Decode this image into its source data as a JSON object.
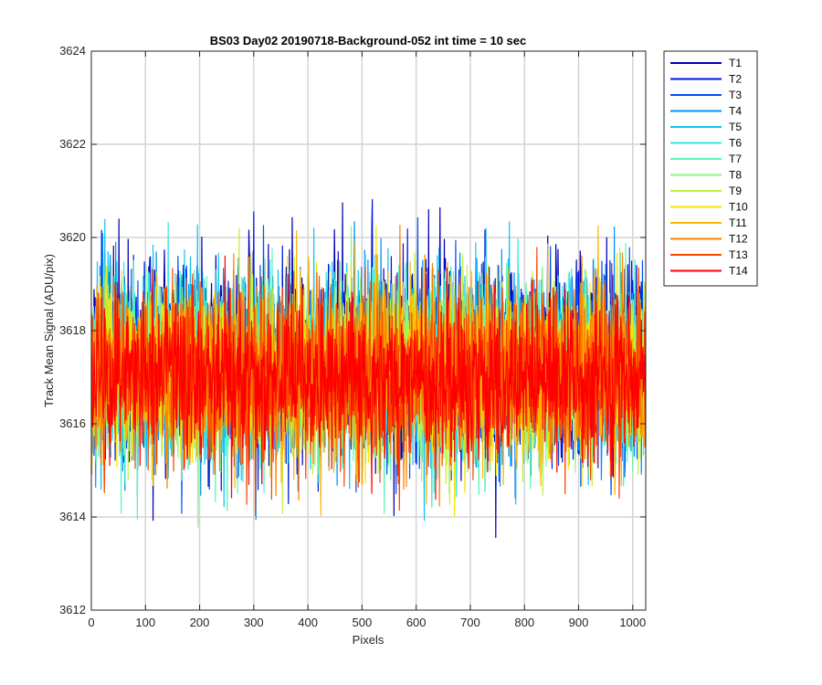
{
  "chart_data": {
    "type": "line",
    "title": "BS03 Day02 20190718-Background-052 int time = 10 sec",
    "xlabel": "Pixels",
    "ylabel": "Track Mean Signal (ADU/pix)",
    "xlim": [
      0,
      1024
    ],
    "ylim": [
      3612,
      3624
    ],
    "xticks": [
      0,
      100,
      200,
      300,
      400,
      500,
      600,
      700,
      800,
      900,
      1000
    ],
    "yticks": [
      3612,
      3614,
      3616,
      3618,
      3620,
      3622,
      3624
    ],
    "grid": true,
    "legend_position": "outside-top-right",
    "x_start": 1,
    "x_count": 1024,
    "series": [
      {
        "name": "T1",
        "color": "#0000b3",
        "mean": 3617.5,
        "spread": 1.05
      },
      {
        "name": "T2",
        "color": "#0016e0",
        "mean": 3617.4,
        "spread": 1.0
      },
      {
        "name": "T3",
        "color": "#0050f0",
        "mean": 3617.2,
        "spread": 0.95
      },
      {
        "name": "T4",
        "color": "#0090f8",
        "mean": 3617.2,
        "spread": 0.95
      },
      {
        "name": "T5",
        "color": "#10c4f4",
        "mean": 3617.2,
        "spread": 1.0
      },
      {
        "name": "T6",
        "color": "#30e8e0",
        "mean": 3617.1,
        "spread": 0.95
      },
      {
        "name": "T7",
        "color": "#5cf4b8",
        "mean": 3617.1,
        "spread": 0.9
      },
      {
        "name": "T8",
        "color": "#8cf488",
        "mean": 3617.1,
        "spread": 0.9
      },
      {
        "name": "T9",
        "color": "#c0f040",
        "mean": 3617.1,
        "spread": 0.9
      },
      {
        "name": "T10",
        "color": "#f4e400",
        "mean": 3617.1,
        "spread": 0.95
      },
      {
        "name": "T11",
        "color": "#fcb400",
        "mean": 3617.1,
        "spread": 0.95
      },
      {
        "name": "T12",
        "color": "#fc8000",
        "mean": 3617.1,
        "spread": 0.95
      },
      {
        "name": "T13",
        "color": "#f84800",
        "mean": 3617.0,
        "spread": 0.9
      },
      {
        "name": "T14",
        "color": "#ff0000",
        "mean": 3617.0,
        "spread": 0.85
      }
    ]
  }
}
